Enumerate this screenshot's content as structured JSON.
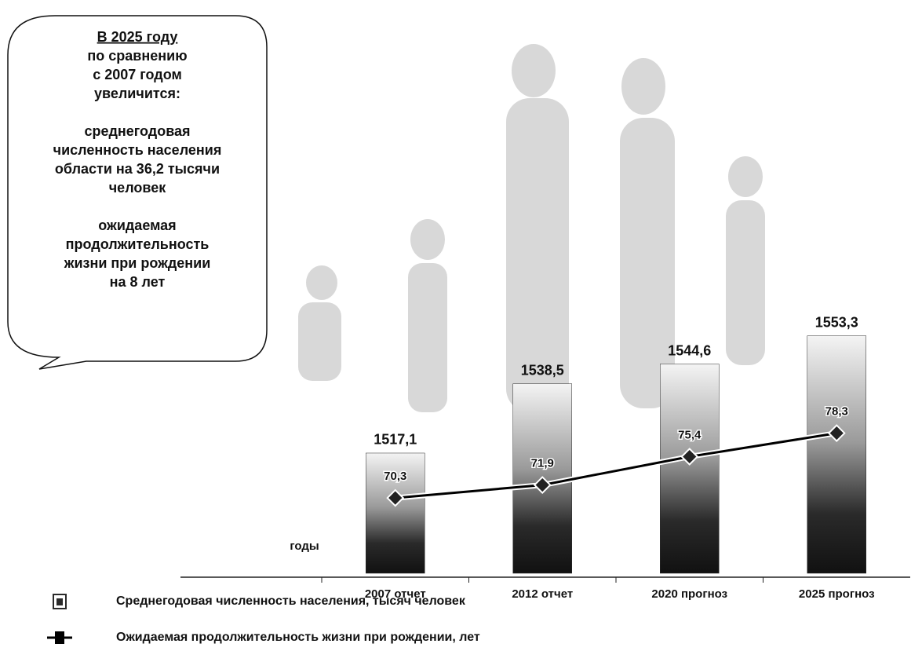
{
  "chart_data": {
    "type": "bar",
    "categories": [
      "2007 отчет",
      "2012 отчет",
      "2020 прогноз",
      "2025 прогноз"
    ],
    "x_label": "годы",
    "series": [
      {
        "name": "Среднегодовая численность населения, тысяч человек",
        "type": "bar",
        "color": "#2a2a2a",
        "values": [
          1517.1,
          1538.5,
          1544.6,
          1553.3
        ],
        "value_labels": [
          "1517,1",
          "1538,5",
          "1544,6",
          "1553,3"
        ]
      },
      {
        "name": "Ожидаемая продолжительность жизни при рождении, лет",
        "type": "line",
        "axis": "y2",
        "color": "#000000",
        "values": [
          70.3,
          71.9,
          75.4,
          78.3
        ],
        "value_labels": [
          "70,3",
          "71,9",
          "75,4",
          "78,3"
        ]
      }
    ],
    "ylim": [
      1480,
      1560
    ],
    "y2lim": [
      61,
      93
    ],
    "legend": "bottom-left",
    "annotation": {
      "paragraphs": [
        [
          "В 2025 году",
          "по сравнению",
          "с 2007 годом",
          "увеличится:"
        ],
        [
          "среднегодовая",
          "численность населения",
          "области на 36,2 тысячи",
          "человек"
        ],
        [
          "ожидаемая",
          "продолжительность",
          "жизни при рождении",
          "на 8 лет"
        ]
      ]
    }
  }
}
